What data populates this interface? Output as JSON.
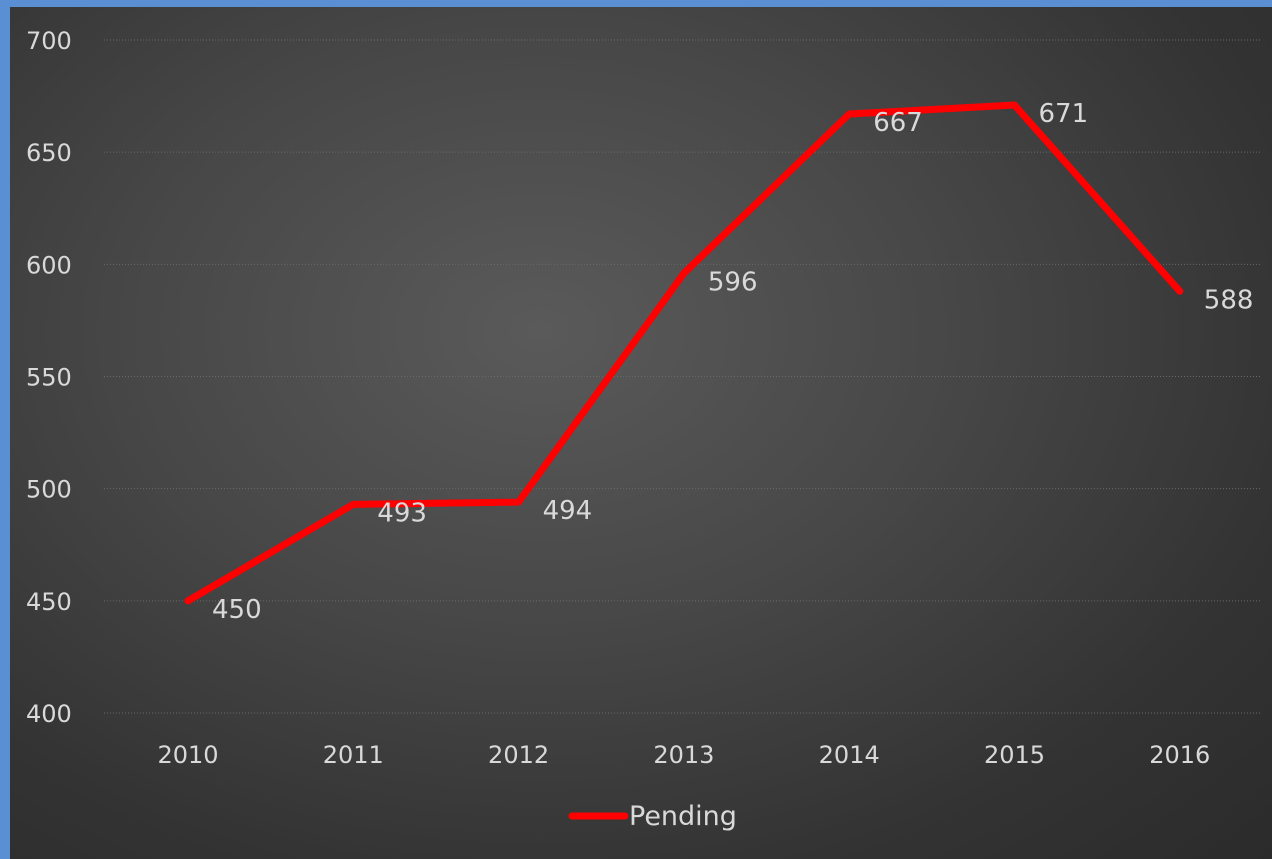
{
  "chart_data": {
    "type": "line",
    "categories": [
      "2010",
      "2011",
      "2012",
      "2013",
      "2014",
      "2015",
      "2016"
    ],
    "series": [
      {
        "name": "Pending",
        "values": [
          450,
          493,
          494,
          596,
          667,
          671,
          588
        ],
        "color": "#ff0000"
      }
    ],
    "ylim": [
      400,
      700
    ],
    "yticks": [
      "400",
      "450",
      "500",
      "550",
      "600",
      "650",
      "700"
    ],
    "data_labels": [
      "450",
      "493",
      "494",
      "596",
      "667",
      "671",
      "588"
    ],
    "grid": true,
    "legend_position": "bottom"
  },
  "colors": {
    "frame_border": "#5b8fd4",
    "line": "#ff0000",
    "text": "#d9d9d9"
  }
}
